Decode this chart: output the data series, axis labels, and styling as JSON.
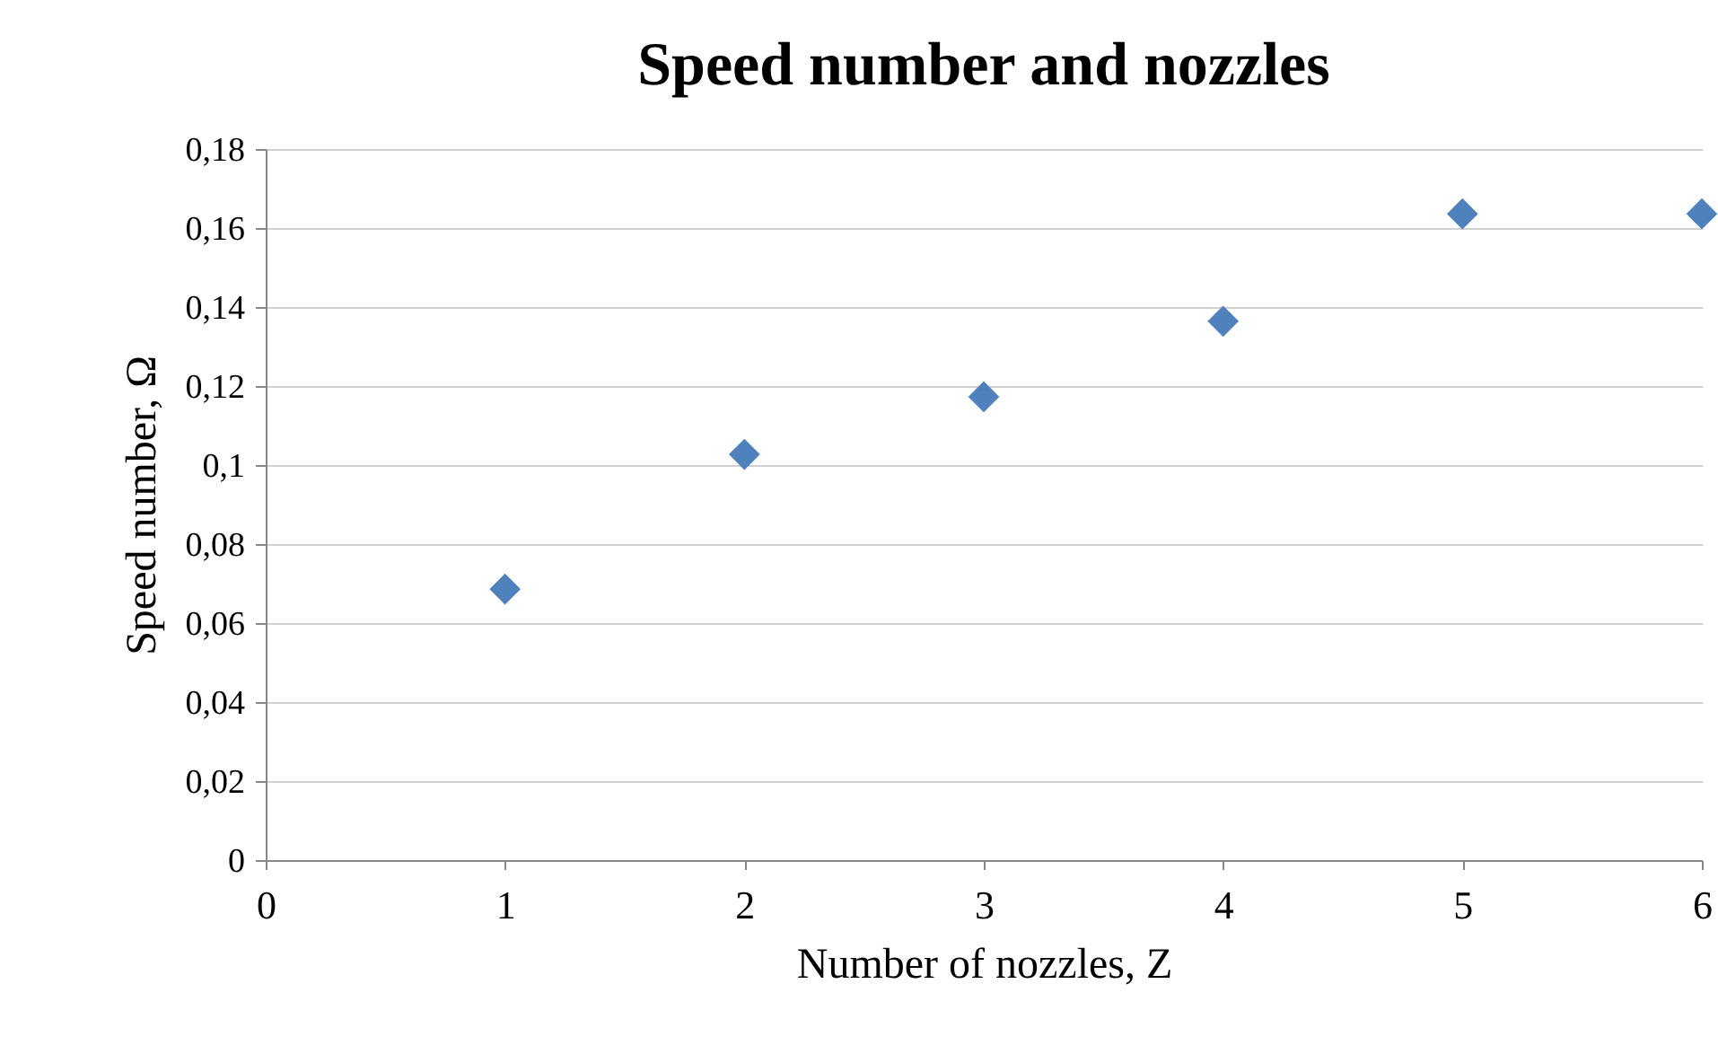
{
  "chart_data": {
    "type": "scatter",
    "title": "Speed number and nozzles",
    "xlabel": "Number of nozzles, Z",
    "ylabel": "Speed number, Ω",
    "x": [
      1,
      2,
      3,
      4,
      5,
      6
    ],
    "series": [
      {
        "color": "#4f81bd",
        "values": [
          0.0686,
          0.1027,
          0.1173,
          0.1364,
          0.1636,
          0.1636
        ]
      }
    ],
    "xlim": [
      0,
      6
    ],
    "xticks": [
      0,
      1,
      2,
      3,
      4,
      5,
      6
    ],
    "ylim": [
      0,
      0.18
    ],
    "yticks": [
      0,
      {
        "value": 0.02,
        "label": "0,02"
      },
      {
        "value": 0.04,
        "label": "0,04"
      },
      {
        "value": 0.06,
        "label": "0,06"
      },
      {
        "value": 0.08,
        "label": "0,08"
      },
      {
        "value": 0.1,
        "label": "0,1"
      },
      {
        "value": 0.12,
        "label": "0,12"
      },
      {
        "value": 0.14,
        "label": "0,14"
      },
      {
        "value": 0.16,
        "label": "0,16"
      },
      {
        "value": 0.18,
        "label": "0,18"
      }
    ],
    "grid": "y",
    "marker": "diamond",
    "legend": false
  }
}
